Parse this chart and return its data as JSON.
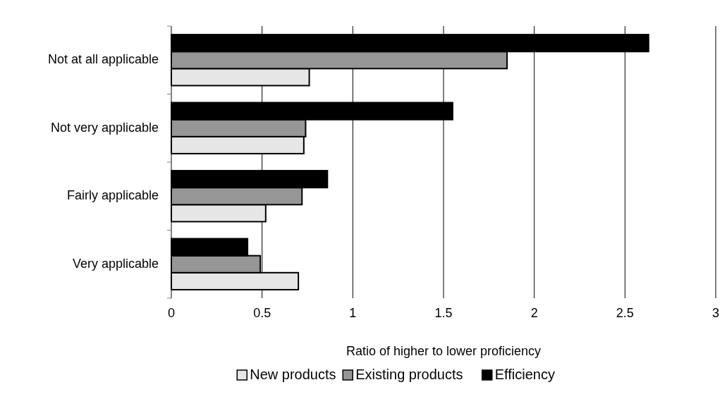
{
  "chart_data": {
    "type": "bar",
    "orientation": "horizontal",
    "categories": [
      "Not at all applicable",
      "Not very applicable",
      "Fairly applicable",
      "Very applicable"
    ],
    "series": [
      {
        "name": "New products",
        "color": "#e6e6e6",
        "values": [
          0.76,
          0.73,
          0.52,
          0.7
        ]
      },
      {
        "name": "Existing products",
        "color": "#969696",
        "values": [
          1.85,
          0.74,
          0.72,
          0.49
        ]
      },
      {
        "name": "Efficiency",
        "color": "#000000",
        "values": [
          2.63,
          1.55,
          0.86,
          0.42
        ]
      }
    ],
    "xlabel": "Ratio of higher to lower proficiency",
    "xlim": [
      0,
      3
    ],
    "xticks": [
      0,
      0.5,
      1,
      1.5,
      2,
      2.5,
      3
    ],
    "grid": "x",
    "legend": "bottom"
  }
}
